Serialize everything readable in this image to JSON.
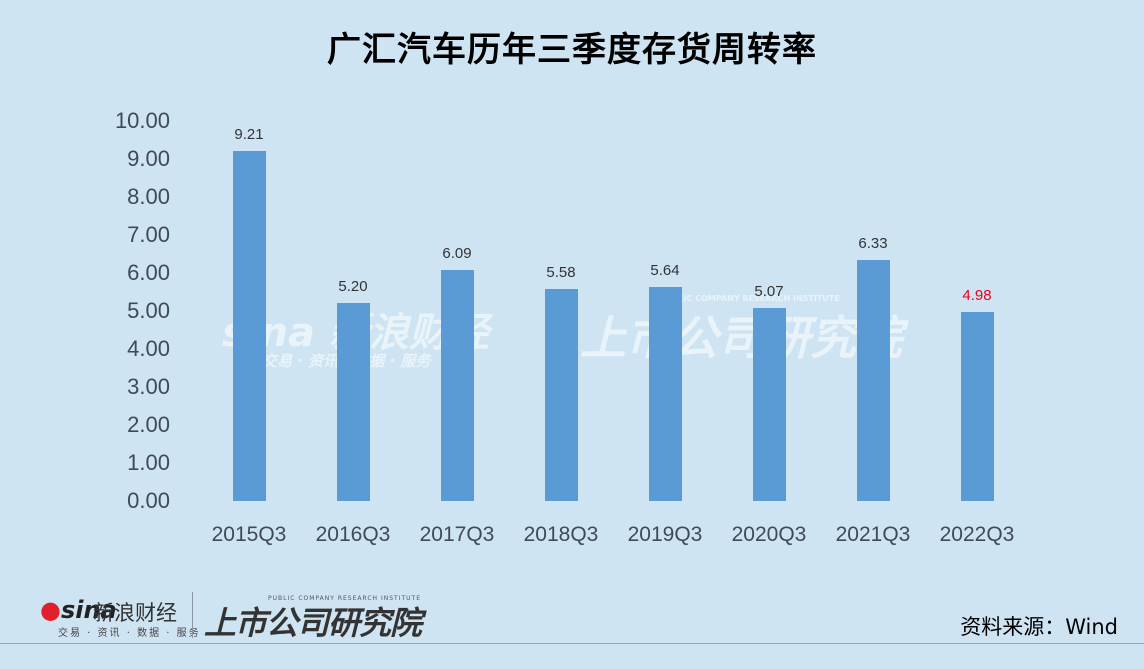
{
  "title": "广汇汽车历年三季度存货周转率",
  "chart_data": {
    "type": "bar",
    "title": "广汇汽车历年三季度存货周转率",
    "categories": [
      "2015Q3",
      "2016Q3",
      "2017Q3",
      "2018Q3",
      "2019Q3",
      "2020Q3",
      "2021Q3",
      "2022Q3"
    ],
    "values": [
      9.21,
      5.2,
      6.09,
      5.58,
      5.64,
      5.07,
      6.33,
      4.98
    ],
    "value_labels": [
      "9.21",
      "5.20",
      "6.09",
      "5.58",
      "5.64",
      "5.07",
      "6.33",
      "4.98"
    ],
    "highlight_index": 7,
    "xlabel": "",
    "ylabel": "",
    "ylim": [
      0,
      10
    ],
    "yticks": [
      "10.00",
      "9.00",
      "8.00",
      "7.00",
      "6.00",
      "5.00",
      "4.00",
      "3.00",
      "2.00",
      "1.00",
      "0.00"
    ],
    "grid": false,
    "legend": null,
    "colors": {
      "bar": "#5b9bd5",
      "label_default": "#333333",
      "label_highlight": "#e8001c",
      "background": "#cfe4f3"
    }
  },
  "watermark": {
    "sina": "sina 新浪财经",
    "sina_sub": "交易 · 资讯 · 数据 · 服务",
    "institute": "上市公司研究院",
    "institute_en": "PUBLIC COMPANY RESEARCH INSTITUTE"
  },
  "footer": {
    "logo_sina": "sina",
    "logo_cn": "新浪财经",
    "logo_sub": "交易 · 资讯 · 数据 · 服务",
    "logo_institute": "上市公司研究院",
    "logo_institute_en": "PUBLIC COMPANY RESEARCH INSTITUTE",
    "source": "资料来源：Wind"
  }
}
